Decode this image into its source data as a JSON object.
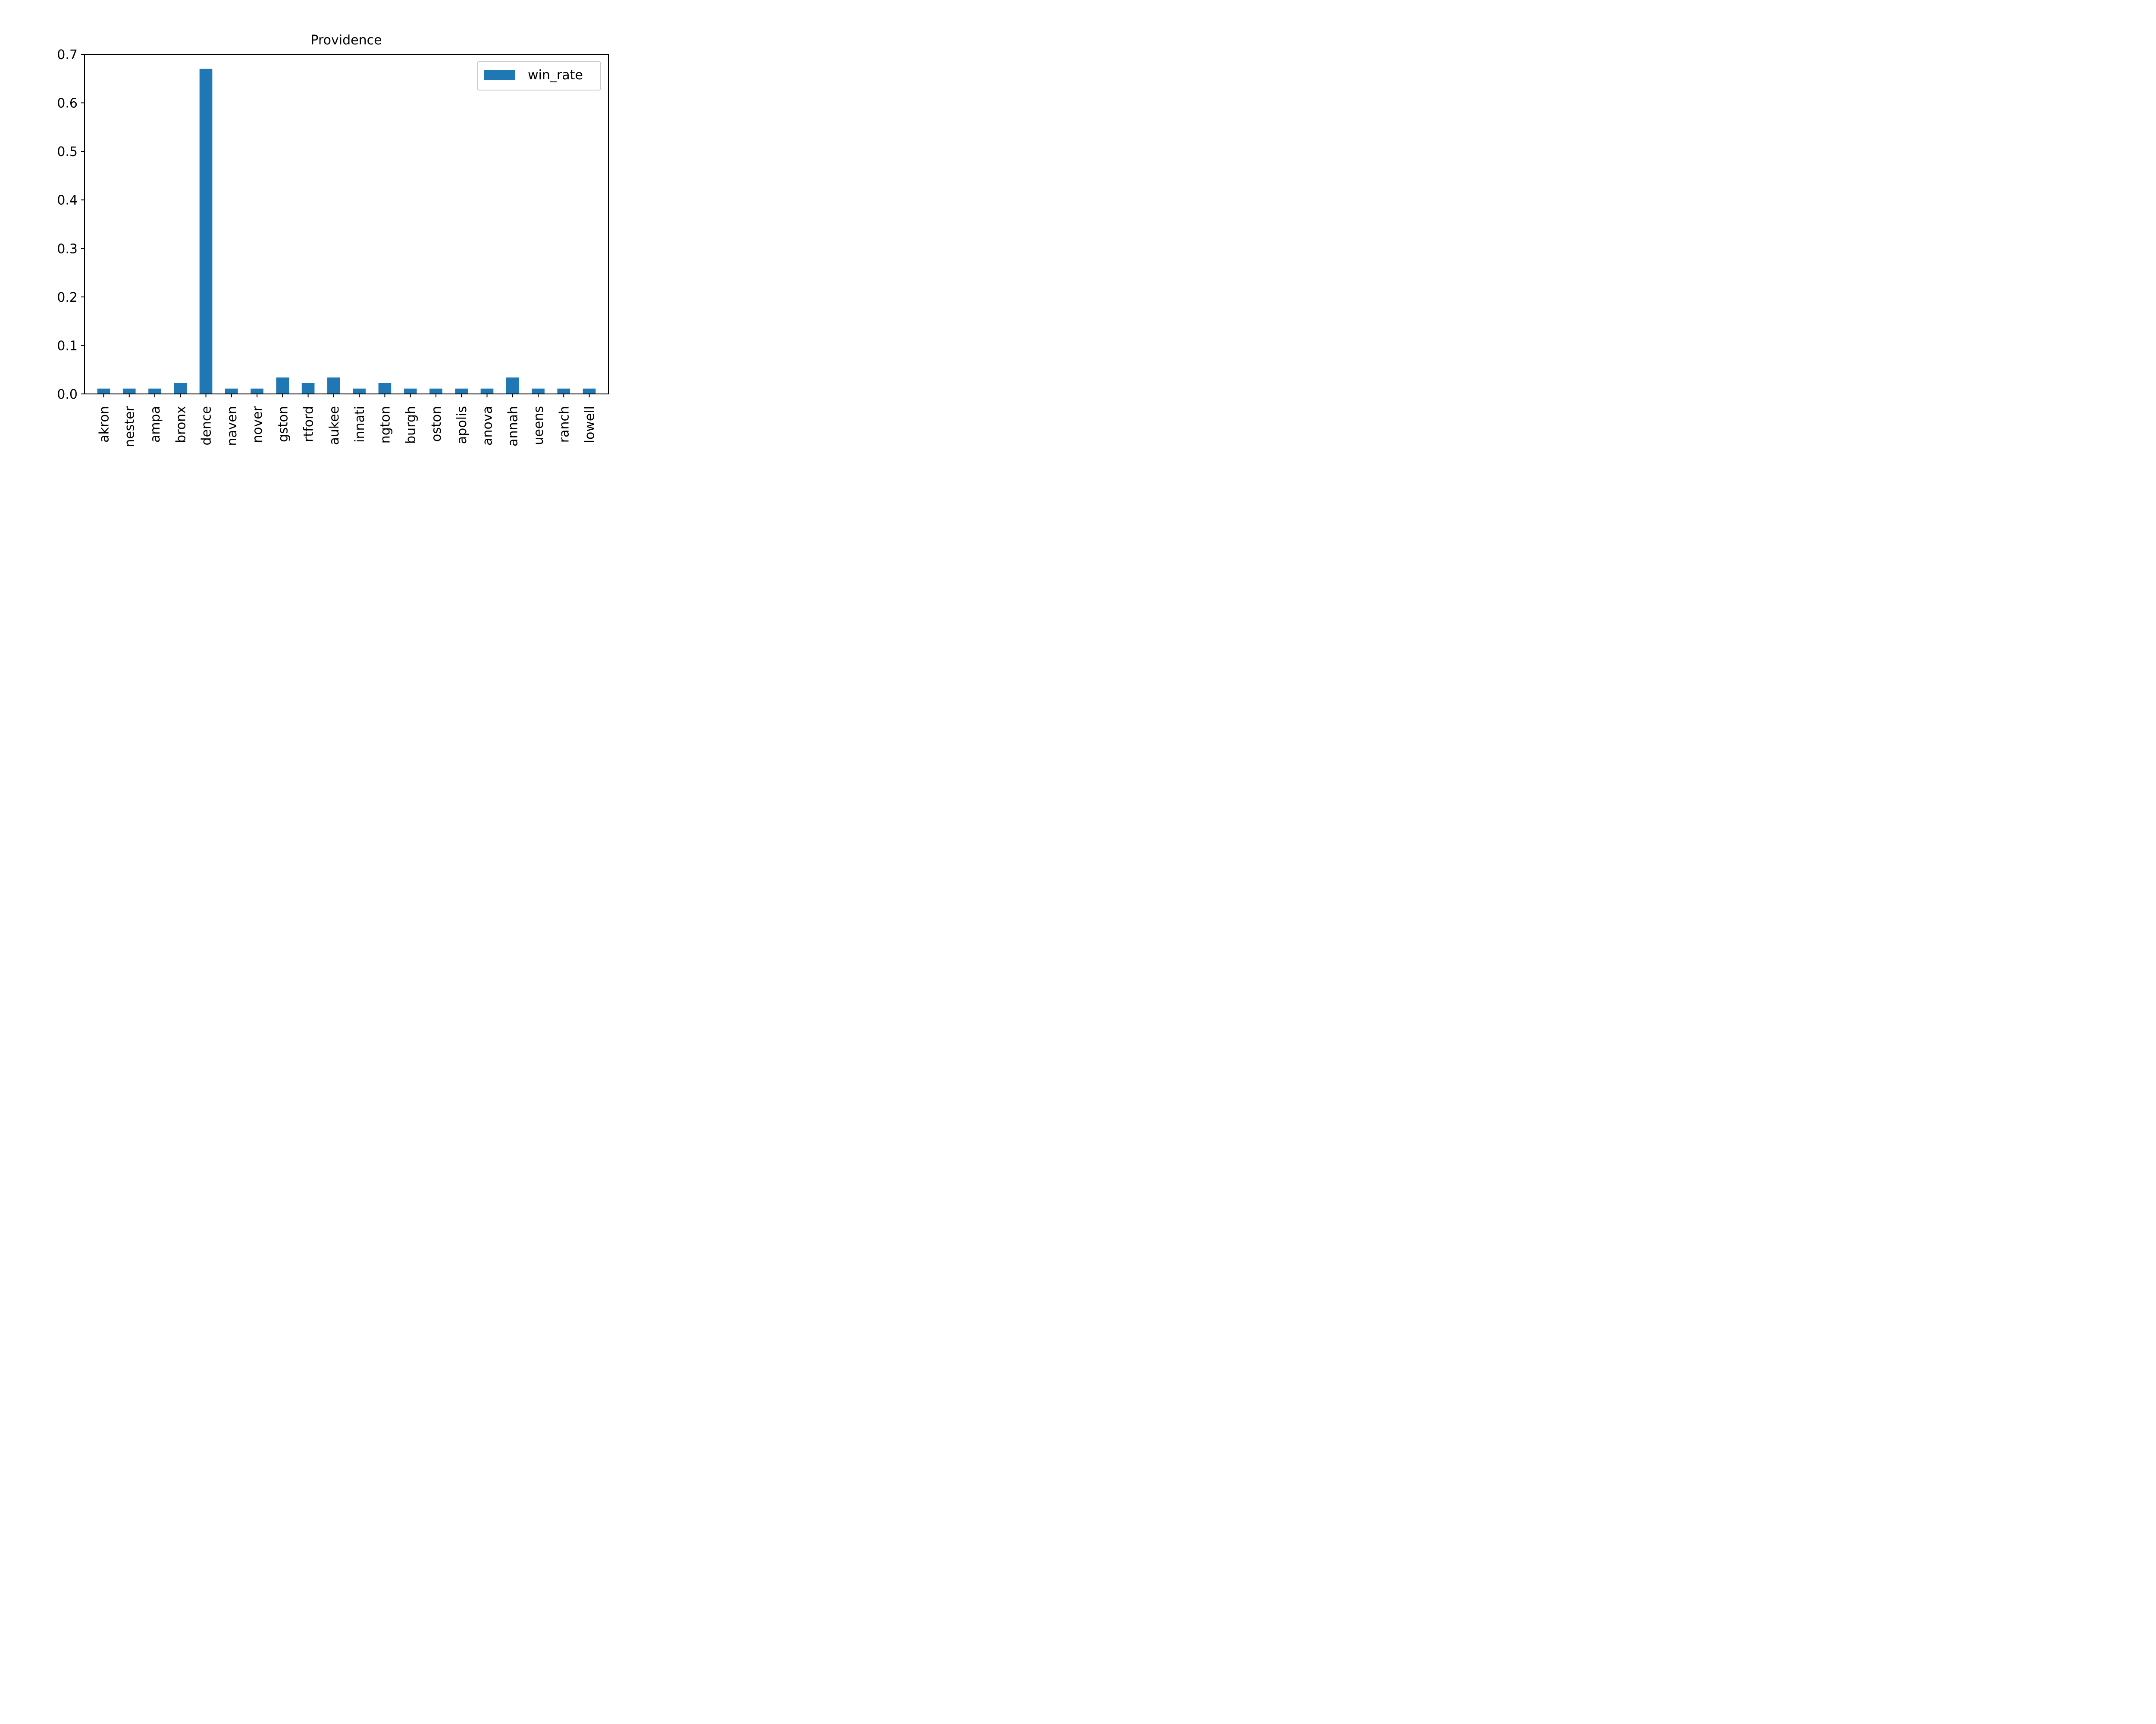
{
  "chart_data": {
    "type": "bar",
    "title": "Providence",
    "xlabel": "",
    "ylabel": "",
    "categories": [
      "akron",
      "nester",
      "ampa",
      "bronx",
      "dence",
      "naven",
      "nover",
      "gston",
      "rtford",
      "aukee",
      "innati",
      "ngton",
      "burgh",
      "oston",
      "apolis",
      "anova",
      "annah",
      "ueens",
      "ranch",
      "lowell"
    ],
    "series": [
      {
        "name": "win_rate",
        "color": "#1f77b4",
        "values": [
          0.011,
          0.011,
          0.011,
          0.023,
          0.67,
          0.011,
          0.011,
          0.034,
          0.023,
          0.034,
          0.011,
          0.023,
          0.011,
          0.011,
          0.011,
          0.011,
          0.034,
          0.011,
          0.011,
          0.011
        ]
      }
    ],
    "ylim": [
      0,
      0.7
    ],
    "yticks": [
      "0.0",
      "0.1",
      "0.2",
      "0.3",
      "0.4",
      "0.5",
      "0.6",
      "0.7"
    ],
    "grid": false,
    "legend_position": "top-right"
  }
}
